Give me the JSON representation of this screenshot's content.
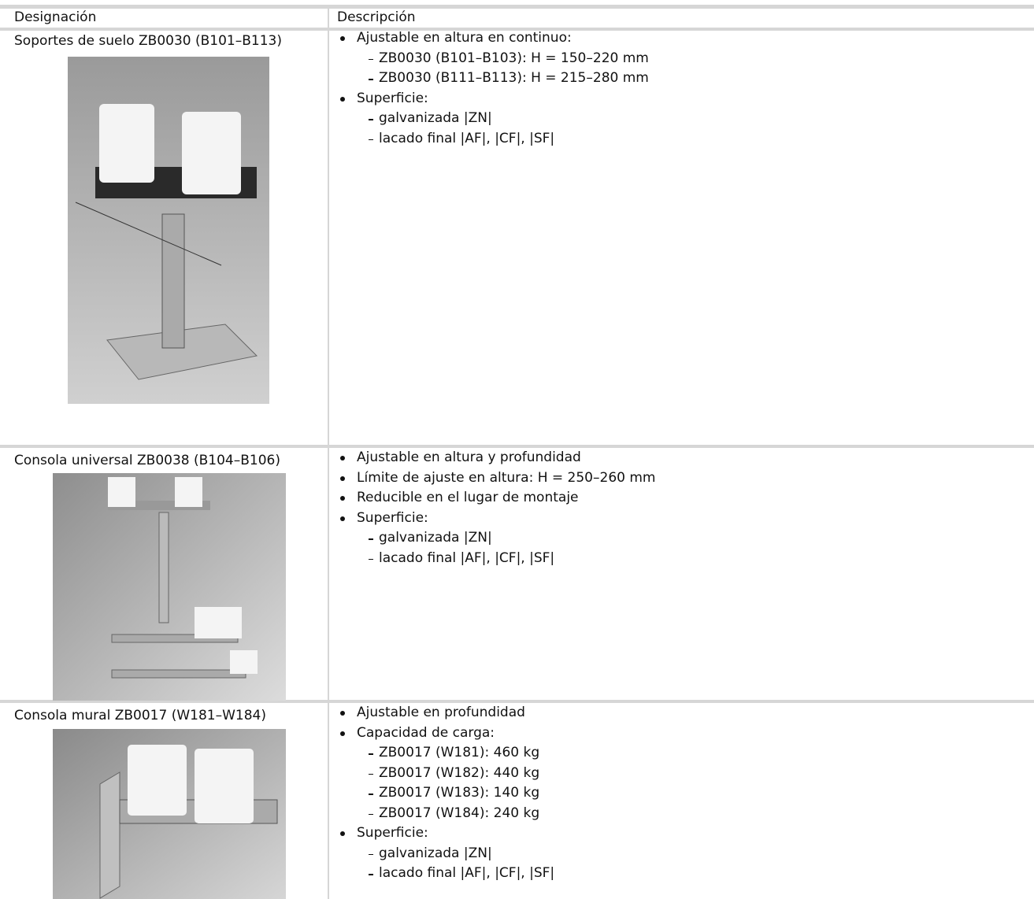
{
  "table": {
    "headers": [
      "Designación",
      "Descripción"
    ],
    "rows": [
      {
        "designation": "Soportes de suelo ZB0030 (B101–B113)",
        "description": [
          {
            "text": "Ajustable en altura en continuo:",
            "items": [
              "ZB0030 (B101–B103): H = 150–220 mm",
              "ZB0030 (B111–B113): H = 215–280 mm"
            ]
          },
          {
            "text": "Superficie:",
            "items": [
              "galvanizada |ZN|",
              "lacado final |AF|, |CF|, |SF|"
            ]
          }
        ]
      },
      {
        "designation": "Consola universal ZB0038 (B104–B106)",
        "description": [
          {
            "text": "Ajustable en altura y profundidad",
            "items": []
          },
          {
            "text": "Límite de ajuste en altura: H = 250–260 mm",
            "items": []
          },
          {
            "text": "Reducible en el lugar de montaje",
            "items": []
          },
          {
            "text": "Superficie:",
            "items": [
              "galvanizada |ZN|",
              "lacado final |AF|, |CF|, |SF|"
            ]
          }
        ]
      },
      {
        "designation": "Consola mural ZB0017 (W181–W184)",
        "description": [
          {
            "text": "Ajustable en profundidad",
            "items": []
          },
          {
            "text": "Capacidad de carga:",
            "items": [
              "ZB0017 (W181): 460 kg",
              "ZB0017 (W182): 440 kg",
              "ZB0017 (W183): 140 kg",
              "ZB0017 (W184): 240 kg"
            ]
          },
          {
            "text": "Superficie:",
            "items": [
              "galvanizada |ZN|",
              "lacado final |AF|, |CF|, |SF|"
            ]
          }
        ]
      }
    ]
  }
}
